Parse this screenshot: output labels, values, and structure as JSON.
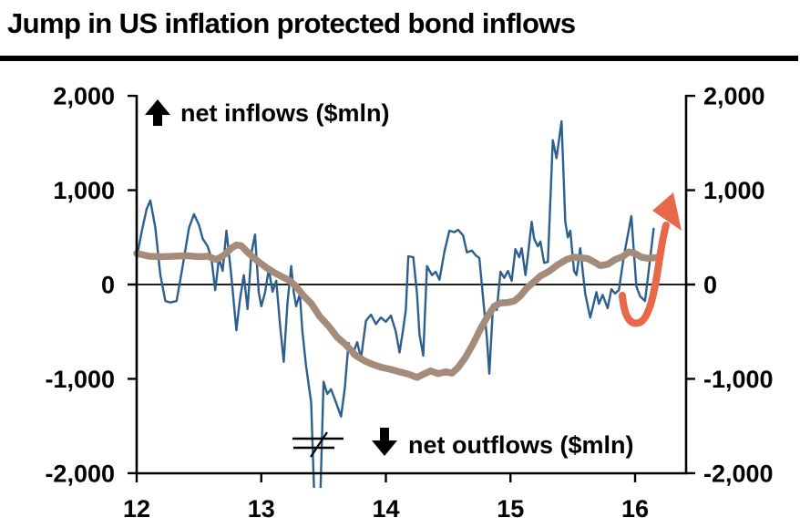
{
  "title": "Jump in US inflation protected bond inflows",
  "chart_data": {
    "type": "line",
    "title": "Jump in US inflation protected bond inflows",
    "x_axis": {
      "tick_labels": [
        "12",
        "13",
        "14",
        "15",
        "16"
      ],
      "tick_years": [
        12,
        13,
        14,
        15,
        16
      ],
      "range": [
        12,
        16.41
      ],
      "grid": false
    },
    "y_axis": {
      "tick_labels": [
        "2,000",
        "1,000",
        "0",
        "-1,000",
        "-2,000"
      ],
      "tick_values": [
        2000,
        1000,
        0,
        -1000,
        -2000
      ],
      "range": [
        -2000,
        2000
      ],
      "sides": "both",
      "zero_line": true,
      "grid": false
    },
    "annotations": {
      "inflows_label": "net inflows  ($mln)",
      "outflows_label": "net outflows  ($mln)",
      "axis_break_note": "axis break marks near year 13.45 where blue series falls below -2,000",
      "trend_arrow_note": "orange arrow highlighting upswing in flows at start of 16"
    },
    "colors": {
      "blue_series": "#2d5f8e",
      "brown_series": "#a58c7a",
      "arrow": "#e7684a",
      "axis": "#000000"
    },
    "series": [
      {
        "id": "weekly-flows-blue",
        "color": "#2d5f8e",
        "points": [
          [
            12.0,
            280
          ],
          [
            12.04,
            560
          ],
          [
            12.08,
            800
          ],
          [
            12.11,
            890
          ],
          [
            12.15,
            600
          ],
          [
            12.19,
            100
          ],
          [
            12.23,
            -175
          ],
          [
            12.27,
            -190
          ],
          [
            12.32,
            -175
          ],
          [
            12.37,
            200
          ],
          [
            12.42,
            600
          ],
          [
            12.46,
            745
          ],
          [
            12.5,
            630
          ],
          [
            12.53,
            485
          ],
          [
            12.57,
            405
          ],
          [
            12.6,
            280
          ],
          [
            12.63,
            -60
          ],
          [
            12.66,
            280
          ],
          [
            12.69,
            145
          ],
          [
            12.72,
            570
          ],
          [
            12.76,
            90
          ],
          [
            12.8,
            -485
          ],
          [
            12.83,
            -150
          ],
          [
            12.86,
            100
          ],
          [
            12.89,
            -260
          ],
          [
            12.92,
            330
          ],
          [
            12.95,
            530
          ],
          [
            12.98,
            -85
          ],
          [
            13.0,
            -230
          ],
          [
            13.03,
            -85
          ],
          [
            13.06,
            165
          ],
          [
            13.09,
            -75
          ],
          [
            13.12,
            40
          ],
          [
            13.15,
            -425
          ],
          [
            13.18,
            -820
          ],
          [
            13.21,
            -195
          ],
          [
            13.24,
            195
          ],
          [
            13.26,
            -75
          ],
          [
            13.28,
            -230
          ],
          [
            13.31,
            -100
          ],
          [
            13.33,
            -500
          ],
          [
            13.36,
            -870
          ],
          [
            13.4,
            -1250
          ],
          [
            13.43,
            -2450
          ],
          [
            13.47,
            -2450
          ],
          [
            13.5,
            -1030
          ],
          [
            13.53,
            -1160
          ],
          [
            13.56,
            -1110
          ],
          [
            13.6,
            -1250
          ],
          [
            13.64,
            -1400
          ],
          [
            13.67,
            -1100
          ],
          [
            13.7,
            -620
          ],
          [
            13.73,
            -755
          ],
          [
            13.77,
            -610
          ],
          [
            13.8,
            -785
          ],
          [
            13.84,
            -385
          ],
          [
            13.88,
            -320
          ],
          [
            13.92,
            -420
          ],
          [
            13.96,
            -350
          ],
          [
            14.0,
            -395
          ],
          [
            14.04,
            -330
          ],
          [
            14.08,
            -500
          ],
          [
            14.11,
            -720
          ],
          [
            14.14,
            -465
          ],
          [
            14.16,
            -270
          ],
          [
            14.18,
            300
          ],
          [
            14.22,
            290
          ],
          [
            14.25,
            -100
          ],
          [
            14.27,
            -530
          ],
          [
            14.3,
            -755
          ],
          [
            14.33,
            195
          ],
          [
            14.37,
            100
          ],
          [
            14.4,
            135
          ],
          [
            14.43,
            50
          ],
          [
            14.47,
            350
          ],
          [
            14.51,
            570
          ],
          [
            14.55,
            555
          ],
          [
            14.58,
            580
          ],
          [
            14.62,
            520
          ],
          [
            14.65,
            340
          ],
          [
            14.69,
            360
          ],
          [
            14.72,
            310
          ],
          [
            14.75,
            280
          ],
          [
            14.78,
            -145
          ],
          [
            14.81,
            -560
          ],
          [
            14.83,
            -945
          ],
          [
            14.86,
            -220
          ],
          [
            14.89,
            -270
          ],
          [
            14.92,
            135
          ],
          [
            14.95,
            70
          ],
          [
            14.98,
            145
          ],
          [
            15.01,
            40
          ],
          [
            15.04,
            375
          ],
          [
            15.07,
            290
          ],
          [
            15.09,
            385
          ],
          [
            15.12,
            100
          ],
          [
            15.14,
            310
          ],
          [
            15.17,
            665
          ],
          [
            15.19,
            485
          ],
          [
            15.22,
            405
          ],
          [
            15.24,
            455
          ],
          [
            15.27,
            230
          ],
          [
            15.3,
            240
          ],
          [
            15.34,
            1530
          ],
          [
            15.37,
            1340
          ],
          [
            15.41,
            1730
          ],
          [
            15.44,
            665
          ],
          [
            15.46,
            500
          ],
          [
            15.48,
            570
          ],
          [
            15.51,
            145
          ],
          [
            15.53,
            100
          ],
          [
            15.56,
            385
          ],
          [
            15.6,
            -100
          ],
          [
            15.64,
            -350
          ],
          [
            15.69,
            -80
          ],
          [
            15.71,
            -205
          ],
          [
            15.74,
            -110
          ],
          [
            15.78,
            -250
          ],
          [
            15.81,
            -50
          ],
          [
            15.84,
            -95
          ],
          [
            15.87,
            -60
          ],
          [
            15.91,
            300
          ],
          [
            15.97,
            725
          ],
          [
            16.01,
            -20
          ],
          [
            16.04,
            -125
          ],
          [
            16.08,
            -175
          ],
          [
            16.11,
            150
          ],
          [
            16.15,
            600
          ]
        ]
      },
      {
        "id": "smoothed-average-brown",
        "color": "#a58c7a",
        "points": [
          [
            12.0,
            330
          ],
          [
            12.1,
            300
          ],
          [
            12.2,
            295
          ],
          [
            12.3,
            300
          ],
          [
            12.4,
            305
          ],
          [
            12.5,
            295
          ],
          [
            12.57,
            300
          ],
          [
            12.64,
            265
          ],
          [
            12.7,
            310
          ],
          [
            12.76,
            385
          ],
          [
            12.8,
            420
          ],
          [
            12.84,
            410
          ],
          [
            12.9,
            330
          ],
          [
            12.97,
            250
          ],
          [
            13.04,
            180
          ],
          [
            13.1,
            130
          ],
          [
            13.17,
            80
          ],
          [
            13.23,
            40
          ],
          [
            13.28,
            -20
          ],
          [
            13.34,
            -120
          ],
          [
            13.4,
            -200
          ],
          [
            13.47,
            -340
          ],
          [
            13.54,
            -440
          ],
          [
            13.61,
            -560
          ],
          [
            13.68,
            -640
          ],
          [
            13.76,
            -755
          ],
          [
            13.83,
            -810
          ],
          [
            13.9,
            -850
          ],
          [
            13.97,
            -880
          ],
          [
            14.04,
            -900
          ],
          [
            14.11,
            -925
          ],
          [
            14.18,
            -950
          ],
          [
            14.25,
            -985
          ],
          [
            14.31,
            -945
          ],
          [
            14.36,
            -915
          ],
          [
            14.42,
            -945
          ],
          [
            14.48,
            -925
          ],
          [
            14.53,
            -940
          ],
          [
            14.58,
            -880
          ],
          [
            14.64,
            -770
          ],
          [
            14.7,
            -630
          ],
          [
            14.76,
            -470
          ],
          [
            14.82,
            -330
          ],
          [
            14.87,
            -230
          ],
          [
            14.92,
            -195
          ],
          [
            14.98,
            -190
          ],
          [
            15.03,
            -175
          ],
          [
            15.08,
            -120
          ],
          [
            15.13,
            -40
          ],
          [
            15.18,
            20
          ],
          [
            15.24,
            90
          ],
          [
            15.31,
            140
          ],
          [
            15.38,
            210
          ],
          [
            15.45,
            265
          ],
          [
            15.51,
            290
          ],
          [
            15.56,
            285
          ],
          [
            15.62,
            275
          ],
          [
            15.67,
            240
          ],
          [
            15.72,
            200
          ],
          [
            15.78,
            215
          ],
          [
            15.84,
            265
          ],
          [
            15.9,
            295
          ],
          [
            15.95,
            345
          ],
          [
            16.0,
            330
          ],
          [
            16.05,
            290
          ],
          [
            16.1,
            278
          ],
          [
            16.17,
            285
          ]
        ]
      }
    ]
  }
}
